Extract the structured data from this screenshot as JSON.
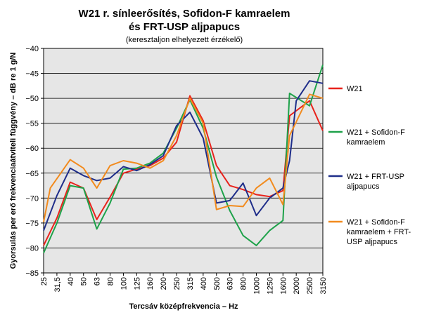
{
  "chart_data": {
    "type": "line",
    "title_lines": [
      "W21 r. sínleerősítés, Sofidon-F kamraelem",
      "és FRT-USP aljpapucs"
    ],
    "subtitle": "(keresztaljon elhelyezett érzékelő)",
    "xlabel": "Tercsáv középfrekvencia – Hz",
    "ylabel": "Gyorsulás per erő frekvenciaátviteli függvény – dB re 1 g/N",
    "ylim": [
      -85,
      -40
    ],
    "yticks": [
      -85,
      -80,
      -75,
      -70,
      -65,
      -60,
      -55,
      -50,
      -45,
      -40
    ],
    "grid": true,
    "legend_position": "right",
    "categories": [
      "25",
      "31,5",
      "40",
      "50",
      "63",
      "80",
      "100",
      "125",
      "160",
      "200",
      "250",
      "315",
      "400",
      "500",
      "630",
      "800",
      "1000",
      "1250",
      "1600",
      "2000",
      "2500",
      "3150"
    ],
    "x": [
      0,
      0.5,
      1,
      2,
      3,
      4,
      5,
      6,
      7,
      8,
      9,
      10,
      11,
      11.5,
      12,
      13,
      14,
      15,
      16,
      17,
      18,
      18.5,
      19,
      20,
      21
    ],
    "series": [
      {
        "name": "W21",
        "legend_lines": [
          "W21"
        ],
        "color": "#e8231c",
        "values": [
          -79.5,
          null,
          -74,
          -66.8,
          -68,
          -74.3,
          -69.8,
          -65,
          -64.2,
          -63.5,
          -62,
          -58.8,
          -49.5,
          null,
          -54.5,
          -63.5,
          -67.5,
          -68.3,
          -69.3,
          -69.7,
          -68.5,
          -53.5,
          null,
          -50.5,
          -56.5
        ]
      },
      {
        "name": "W21 + Sofidon-F kamraelem",
        "legend_lines": [
          "W21 + Sofidon-F",
          "kamraelem"
        ],
        "color": "#1ea24a",
        "values": [
          -81,
          null,
          -75,
          -67.5,
          -68,
          -76.2,
          -71,
          -64.2,
          -64,
          -63,
          -61,
          -56,
          -50.3,
          null,
          -56,
          -65.8,
          -72.5,
          -77.5,
          -79.5,
          -76.5,
          -74.5,
          -49,
          null,
          -51.5,
          -43.3
        ]
      },
      {
        "name": "W21 + FRT-USP aljpapucs",
        "legend_lines": [
          "W21 + FRT-USP",
          "aljpapucs"
        ],
        "color": "#1f2e8a",
        "values": [
          -76.5,
          null,
          -69.5,
          -64,
          -65.5,
          -66.5,
          -66,
          -63.7,
          -64.5,
          -63.3,
          -61.5,
          -55.5,
          -52.8,
          null,
          -58,
          -71,
          -70.5,
          -67,
          -73.5,
          -70,
          -68,
          -62.5,
          -50.5,
          -46.5,
          -47
        ]
      },
      {
        "name": "W21 + Sofidon-F kamraelem + FRT-USP aljpapucs",
        "legend_lines": [
          "W21 + Sofidon-F",
          "kamraelem + FRT-",
          "USP aljpapucs"
        ],
        "color": "#f28b1e",
        "values": [
          -74.8,
          -68,
          null,
          -62.3,
          -64,
          -68,
          -63.5,
          -62.5,
          -63,
          -64,
          -62.5,
          -57.5,
          -50,
          null,
          -55,
          -72.3,
          -71.5,
          -71.7,
          -68,
          -66,
          -71.3,
          -57.5,
          null,
          -49.2,
          -50
        ]
      }
    ]
  }
}
